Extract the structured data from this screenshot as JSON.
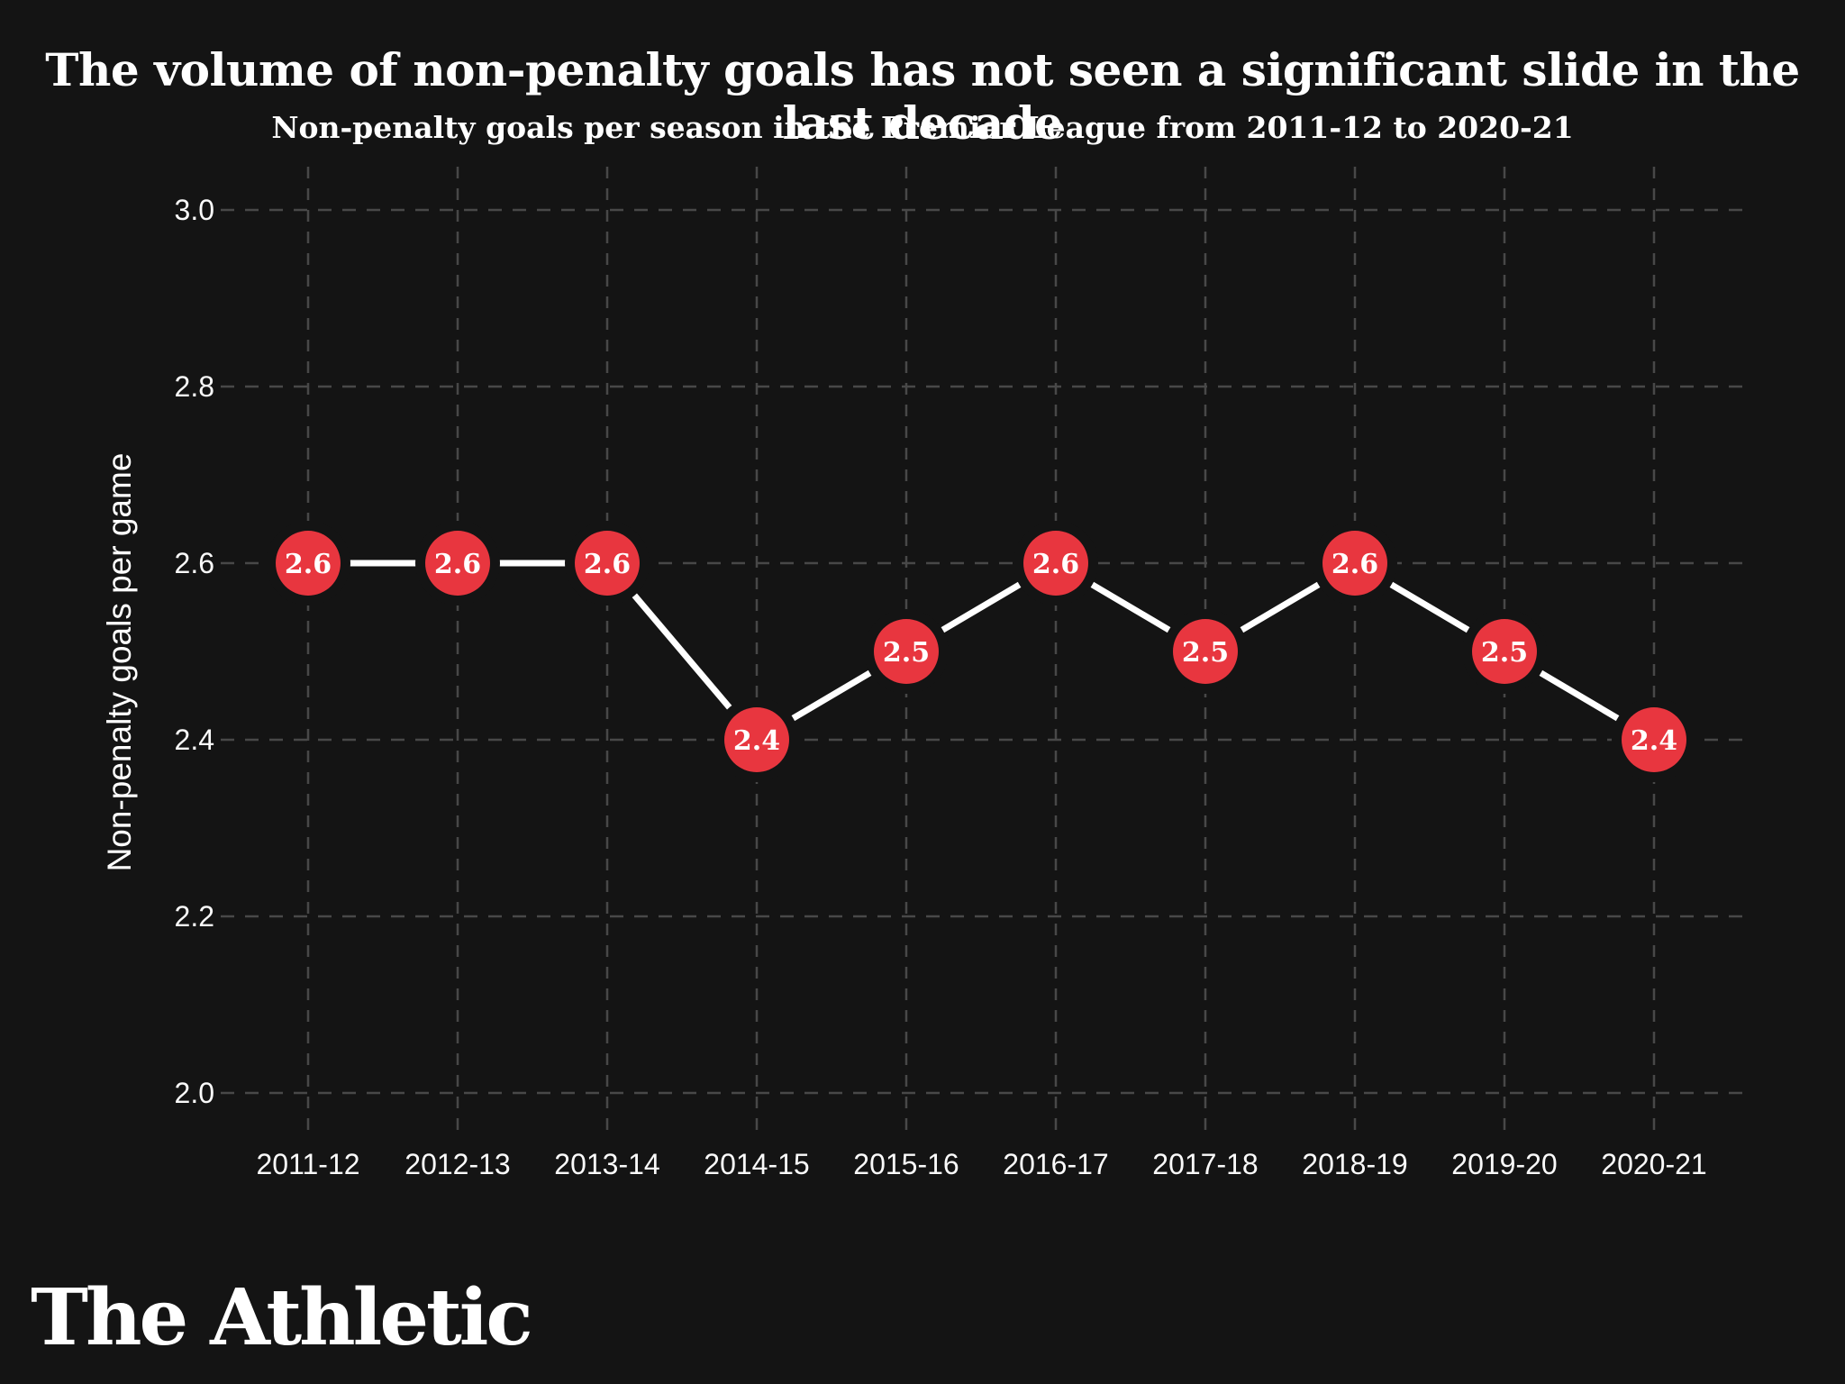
{
  "branding": {
    "logo_text": "The Athletic"
  },
  "chart_data": {
    "type": "line",
    "title": "The volume of non-penalty goals has not seen a significant slide in the last decade",
    "subtitle": "Non-penalty goals per season in the Premier League from 2011-12 to 2020-21",
    "ylabel": "Non-penalty goals per game",
    "xlabel": "",
    "categories": [
      "2011-12",
      "2012-13",
      "2013-14",
      "2014-15",
      "2015-16",
      "2016-17",
      "2017-18",
      "2018-19",
      "2019-20",
      "2020-21"
    ],
    "values": [
      2.6,
      2.6,
      2.6,
      2.4,
      2.5,
      2.6,
      2.5,
      2.6,
      2.5,
      2.4
    ],
    "point_labels": [
      "2.6",
      "2.6",
      "2.6",
      "2.4",
      "2.5",
      "2.6",
      "2.5",
      "2.6",
      "2.5",
      "2.4"
    ],
    "ylim": [
      2.0,
      3.0
    ],
    "yticks": [
      2.0,
      2.2,
      2.4,
      2.6,
      2.8,
      3.0
    ],
    "ytick_labels": [
      "2.0",
      "2.2",
      "2.4",
      "2.6",
      "2.8",
      "3.0"
    ],
    "grid": "dashed",
    "legend": "none",
    "marker_style": "filled-circle-with-value",
    "colors": {
      "background": "#141414",
      "marker": "#e8363f",
      "line": "#ffffff",
      "grid": "#484848",
      "text": "#ffffff"
    }
  }
}
